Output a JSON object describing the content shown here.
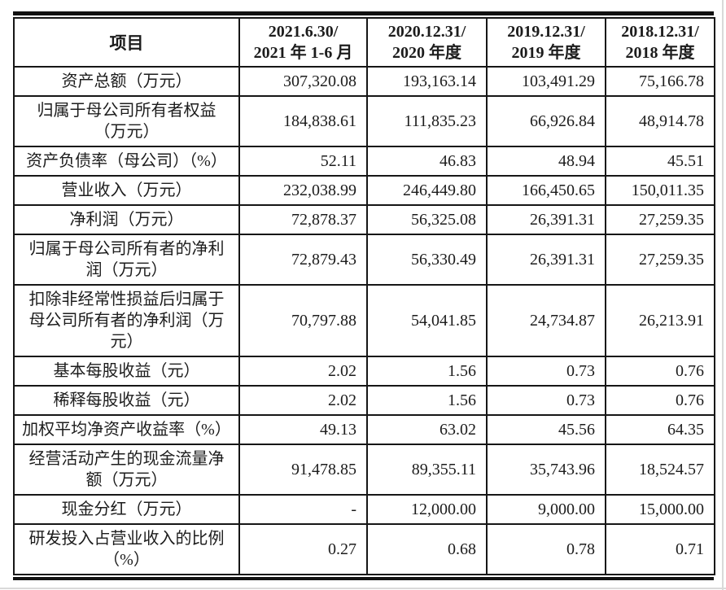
{
  "page": {
    "background": "#ffffff",
    "text_color": "#1c1c1c",
    "border_color": "#161616"
  },
  "table": {
    "header": {
      "item_label": "项目",
      "periods": [
        "2021.6.30/\n2021 年 1-6 月",
        "2020.12.31/\n2020 年度",
        "2019.12.31/\n2019 年度",
        "2018.12.31/\n2018 年度"
      ]
    },
    "rows": [
      {
        "label": "资产总额（万元）",
        "values": [
          "307,320.08",
          "193,163.14",
          "103,491.29",
          "75,166.78"
        ]
      },
      {
        "label": "归属于母公司所有者权益\n（万元）",
        "values": [
          "184,838.61",
          "111,835.23",
          "66,926.84",
          "48,914.78"
        ]
      },
      {
        "label": "资产负债率（母公司）（%）",
        "values": [
          "52.11",
          "46.83",
          "48.94",
          "45.51"
        ]
      },
      {
        "label": "营业收入（万元）",
        "values": [
          "232,038.99",
          "246,449.80",
          "166,450.65",
          "150,011.35"
        ]
      },
      {
        "label": "净利润（万元）",
        "values": [
          "72,878.37",
          "56,325.08",
          "26,391.31",
          "27,259.35"
        ]
      },
      {
        "label": "归属于母公司所有者的净利\n润（万元）",
        "values": [
          "72,879.43",
          "56,330.49",
          "26,391.31",
          "27,259.35"
        ]
      },
      {
        "label": "扣除非经常性损益后归属于\n母公司所有者的净利润（万\n元）",
        "values": [
          "70,797.88",
          "54,041.85",
          "24,734.87",
          "26,213.91"
        ]
      },
      {
        "label": "基本每股收益（元）",
        "values": [
          "2.02",
          "1.56",
          "0.73",
          "0.76"
        ]
      },
      {
        "label": "稀释每股收益（元）",
        "values": [
          "2.02",
          "1.56",
          "0.73",
          "0.76"
        ]
      },
      {
        "label": "加权平均净资产收益率（%）",
        "values": [
          "49.13",
          "63.02",
          "45.56",
          "64.35"
        ]
      },
      {
        "label": "经营活动产生的现金流量净\n额（万元）",
        "values": [
          "91,478.85",
          "89,355.11",
          "35,743.96",
          "18,524.57"
        ]
      },
      {
        "label": "现金分红（万元）",
        "values": [
          "-",
          "12,000.00",
          "9,000.00",
          "15,000.00"
        ]
      },
      {
        "label": "研发投入占营业收入的比例\n（%）",
        "values": [
          "0.27",
          "0.68",
          "0.78",
          "0.71"
        ]
      }
    ]
  }
}
